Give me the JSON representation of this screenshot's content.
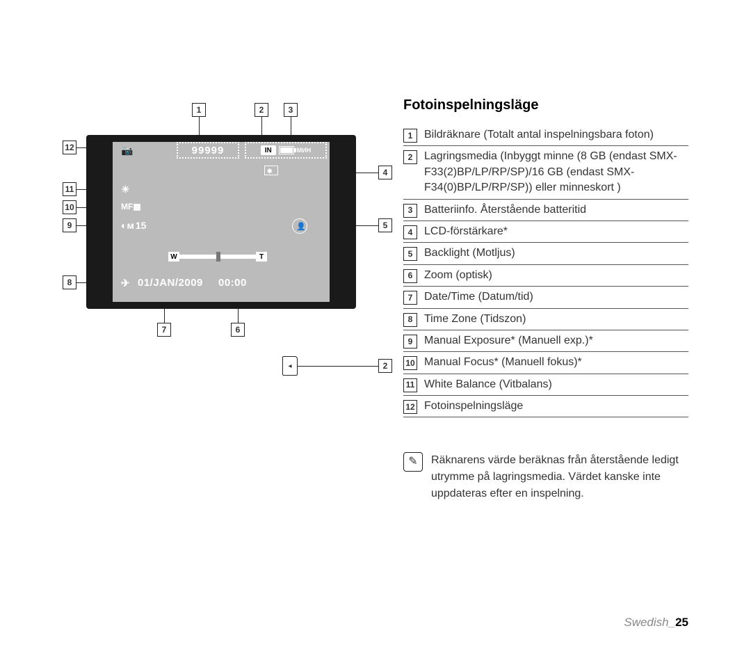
{
  "section_title": "Fotoinspelningsläge",
  "footer_prefix": "Swedish_",
  "footer_page": "25",
  "lcd": {
    "image_counter": "99999",
    "storage_in": "IN",
    "date": "01/JAN/2009",
    "time": "00:00",
    "exposure_value": "15",
    "zoom_w": "W",
    "zoom_t": "T"
  },
  "callouts": {
    "c1": "1",
    "c2": "2",
    "c3": "3",
    "c4": "4",
    "c5": "5",
    "c6": "6",
    "c7": "7",
    "c8": "8",
    "c9": "9",
    "c10": "10",
    "c11": "11",
    "c12": "12",
    "c2b": "2"
  },
  "legend": [
    {
      "n": "1",
      "t": "Bildräknare (Totalt antal inspelningsbara foton)"
    },
    {
      "n": "2",
      "t": "Lagringsmedia (Inbyggt minne (8 GB (endast SMX-F33(2)BP/LP/RP/SP)/16 GB (endast SMX-F34(0)BP/LP/RP/SP)) eller minneskort )"
    },
    {
      "n": "3",
      "t": "Batteriinfo. Återstående batteritid"
    },
    {
      "n": "4",
      "t": "LCD-förstärkare*"
    },
    {
      "n": "5",
      "t": "Backlight (Motljus)"
    },
    {
      "n": "6",
      "t": "Zoom (optisk)"
    },
    {
      "n": "7",
      "t": "Date/Time (Datum/tid)"
    },
    {
      "n": "8",
      "t": "Time Zone (Tidszon)"
    },
    {
      "n": "9",
      "t": "Manual Exposure* (Manuell exp.)*"
    },
    {
      "n": "10",
      "t": "Manual Focus* (Manuell fokus)*"
    },
    {
      "n": "11",
      "t": "White Balance (Vitbalans)"
    },
    {
      "n": "12",
      "t": "Fotoinspelningsläge"
    }
  ],
  "note": "Räknarens värde beräknas från återstående ledigt utrymme på lagringsmedia. Värdet kanske inte uppdateras efter en inspelning.",
  "colors": {
    "bg": "#ffffff",
    "lcd_body": "#1a1a1a",
    "lcd_screen": "#bbbbbb",
    "text": "#333333",
    "rule": "#555555"
  }
}
